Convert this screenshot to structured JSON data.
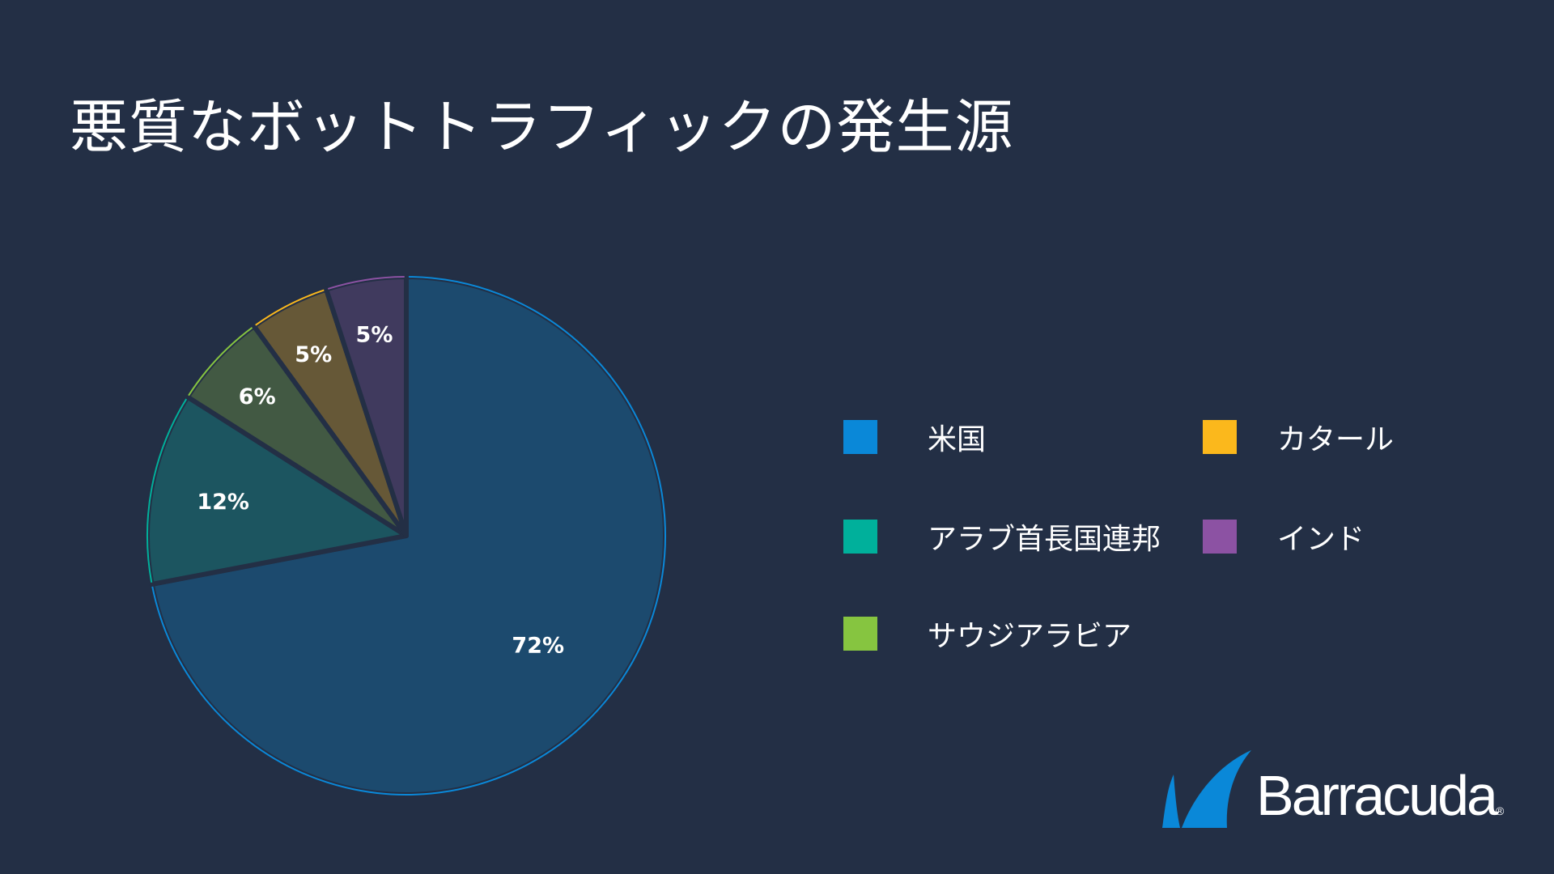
{
  "title": "悪質なボットトラフィックの発生源",
  "chart_data": {
    "type": "pie",
    "title": "悪質なボットトラフィックの発生源",
    "categories": [
      "米国",
      "アラブ首長国連邦",
      "サウジアラビア",
      "カタール",
      "インド"
    ],
    "values": [
      72,
      12,
      6,
      5,
      5
    ],
    "labels": [
      "72%",
      "12%",
      "6%",
      "5%",
      "5%"
    ],
    "slice_order_clockwise_from_top": [
      "米国",
      "アラブ首長国連邦",
      "サウジアラビア",
      "カタール",
      "インド"
    ],
    "legend_placement": "right",
    "colors": {
      "米国": "#0a88d8",
      "アラブ首長国連邦": "#00b09b",
      "サウジアラビア": "#86c540",
      "カタール": "#fbb81c",
      "インド": "#8c52a3"
    },
    "fill_colors": {
      "米国": "#1c4a6e",
      "アラブ首長国連邦": "#1c5560",
      "サウジアラビア": "#425943",
      "カタール": "#665837",
      "インド": "#403a5e"
    }
  },
  "legend": [
    {
      "label": "米国",
      "color": "#0a88d8"
    },
    {
      "label": "アラブ首長国連邦",
      "color": "#00b09b"
    },
    {
      "label": "サウジアラビア",
      "color": "#86c540"
    },
    {
      "label": "カタール",
      "color": "#fbb81c"
    },
    {
      "label": "インド",
      "color": "#8c52a3"
    }
  ],
  "logo": {
    "text": "Barracuda",
    "reg": "®",
    "color": "#0a88d8"
  }
}
